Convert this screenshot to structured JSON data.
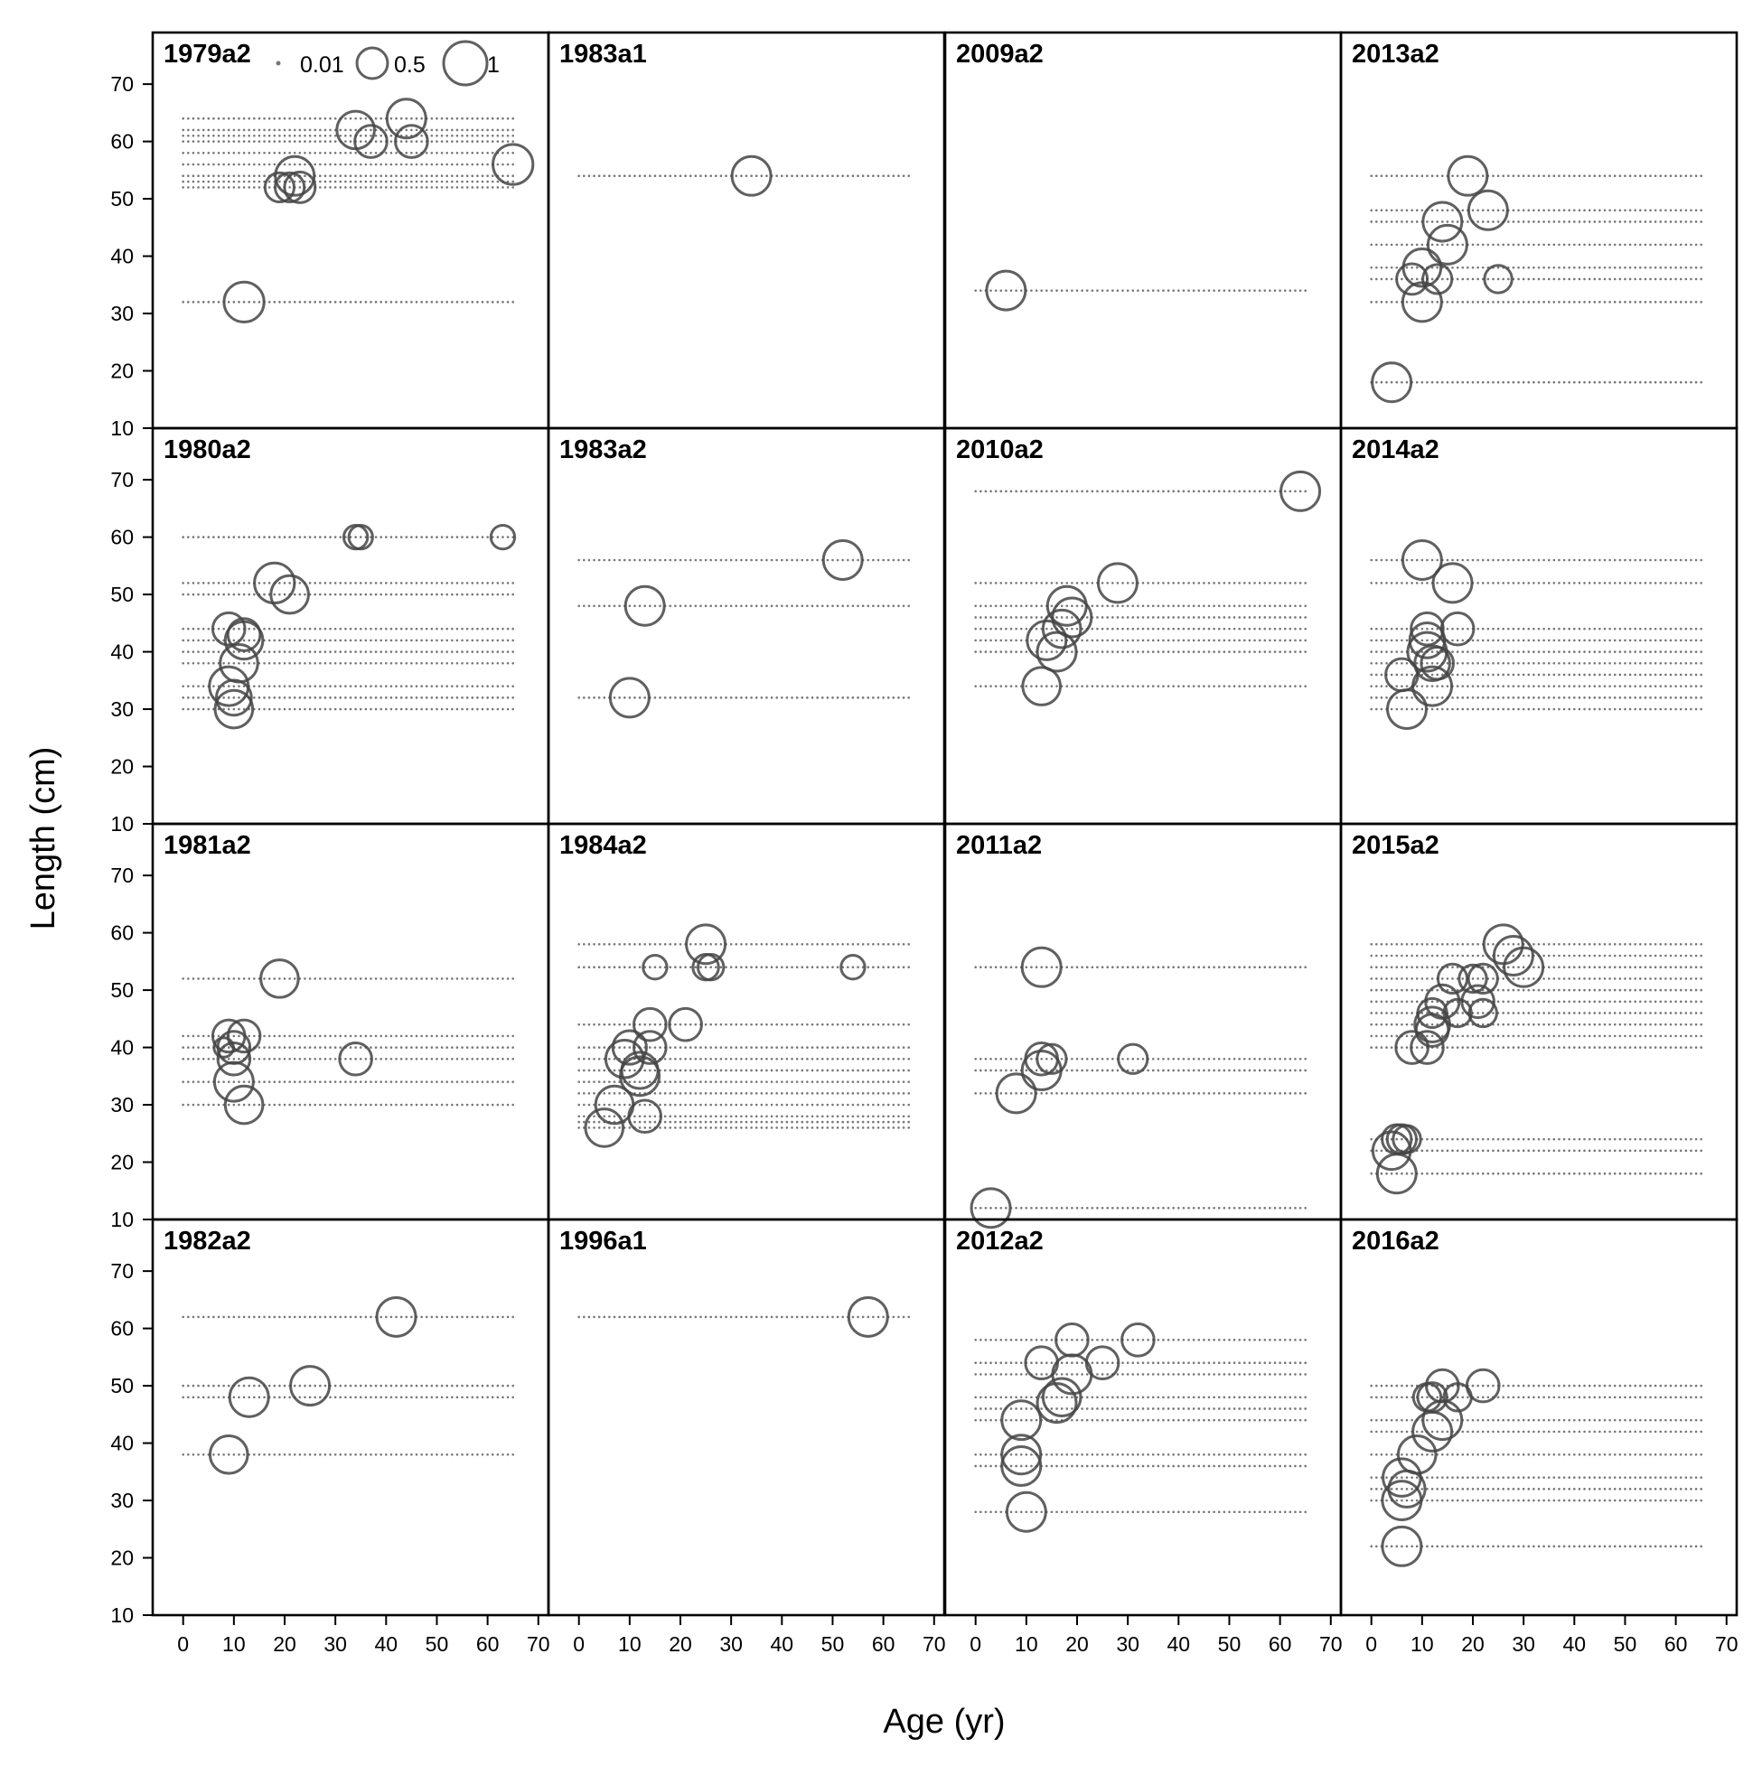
{
  "chart_data": {
    "type": "scatter",
    "xlabel": "Age (yr)",
    "ylabel": "Length (cm)",
    "xlim": [
      -6,
      72
    ],
    "ylim": [
      10,
      79
    ],
    "xticks": [
      "0",
      "10",
      "20",
      "30",
      "40",
      "50",
      "60",
      "70"
    ],
    "yticks": [
      "10",
      "20",
      "30",
      "40",
      "50",
      "60",
      "70"
    ],
    "grid": false,
    "legend": {
      "placement": "top-left of first panel",
      "entries": [
        {
          "label": "0.01",
          "size": 0.01
        },
        {
          "label": "0.5",
          "size": 0.5
        },
        {
          "label": "1",
          "size": 1
        }
      ]
    },
    "panels": [
      {
        "title": "1979a2",
        "col": 0,
        "row": 0,
        "x_max": 65,
        "rows": [
          32,
          52,
          53,
          54,
          56,
          58,
          60,
          61,
          62,
          64
        ],
        "points": [
          [
            12,
            32,
            0.85
          ],
          [
            19,
            52,
            0.45
          ],
          [
            21,
            52,
            0.45
          ],
          [
            23,
            52,
            0.5
          ],
          [
            22,
            54,
            0.8
          ],
          [
            34,
            62,
            0.75
          ],
          [
            37,
            60,
            0.55
          ],
          [
            44,
            64,
            0.8
          ],
          [
            45,
            60,
            0.55
          ],
          [
            65,
            56,
            0.85
          ]
        ]
      },
      {
        "title": "1980a2",
        "col": 0,
        "row": 1,
        "x_max": 65,
        "rows": [
          30,
          32,
          34,
          38,
          40,
          42,
          44,
          50,
          52,
          60
        ],
        "points": [
          [
            9,
            44,
            0.55
          ],
          [
            12,
            43,
            0.55
          ],
          [
            12,
            42,
            0.75
          ],
          [
            11,
            38,
            0.75
          ],
          [
            9,
            34,
            0.8
          ],
          [
            10,
            32,
            0.65
          ],
          [
            10,
            30,
            0.75
          ],
          [
            18,
            52,
            0.85
          ],
          [
            21,
            50,
            0.75
          ],
          [
            34,
            60,
            0.3
          ],
          [
            35,
            60,
            0.3
          ],
          [
            63,
            60,
            0.3
          ]
        ]
      },
      {
        "title": "1981a2",
        "col": 0,
        "row": 2,
        "x_max": 65,
        "rows": [
          30,
          34,
          38,
          40,
          42,
          52
        ],
        "points": [
          [
            8,
            40,
            0.2
          ],
          [
            9,
            42,
            0.55
          ],
          [
            12,
            42,
            0.55
          ],
          [
            10,
            40,
            0.55
          ],
          [
            10,
            38,
            0.55
          ],
          [
            10,
            34,
            0.8
          ],
          [
            12,
            30,
            0.75
          ],
          [
            19,
            52,
            0.75
          ],
          [
            34,
            38,
            0.55
          ]
        ]
      },
      {
        "title": "1982a2",
        "col": 0,
        "row": 3,
        "x_max": 65,
        "rows": [
          38,
          48,
          50,
          62
        ],
        "points": [
          [
            9,
            38,
            0.75
          ],
          [
            13,
            48,
            0.8
          ],
          [
            25,
            50,
            0.8
          ],
          [
            42,
            62,
            0.8
          ]
        ]
      },
      {
        "title": "1983a1",
        "col": 1,
        "row": 0,
        "x_max": 65,
        "rows": [
          54
        ],
        "points": [
          [
            34,
            54,
            0.8
          ]
        ]
      },
      {
        "title": "1983a2",
        "col": 1,
        "row": 1,
        "x_max": 65,
        "rows": [
          32,
          48,
          56
        ],
        "points": [
          [
            10,
            32,
            0.8
          ],
          [
            13,
            48,
            0.8
          ],
          [
            52,
            56,
            0.8
          ]
        ]
      },
      {
        "title": "1984a2",
        "col": 1,
        "row": 2,
        "x_max": 65,
        "rows": [
          26,
          27,
          28,
          30,
          32,
          34,
          36,
          38,
          40,
          44,
          54,
          58
        ],
        "points": [
          [
            5,
            26,
            0.75
          ],
          [
            7,
            30,
            0.75
          ],
          [
            9,
            38,
            0.75
          ],
          [
            10,
            40,
            0.6
          ],
          [
            12,
            35,
            0.8
          ],
          [
            12,
            36,
            0.7
          ],
          [
            13,
            28,
            0.55
          ],
          [
            14,
            40,
            0.55
          ],
          [
            14,
            44,
            0.55
          ],
          [
            15,
            54,
            0.3
          ],
          [
            21,
            44,
            0.55
          ],
          [
            25,
            58,
            0.8
          ],
          [
            25,
            54,
            0.35
          ],
          [
            26,
            54,
            0.35
          ],
          [
            54,
            54,
            0.3
          ]
        ]
      },
      {
        "title": "1996a1",
        "col": 1,
        "row": 3,
        "x_max": 65,
        "rows": [
          62
        ],
        "points": [
          [
            57,
            62,
            0.8
          ]
        ]
      },
      {
        "title": "2009a2",
        "col": 2,
        "row": 0,
        "x_max": 65,
        "rows": [
          34
        ],
        "points": [
          [
            6,
            34,
            0.8
          ]
        ]
      },
      {
        "title": "2010a2",
        "col": 2,
        "row": 1,
        "x_max": 65,
        "rows": [
          34,
          40,
          42,
          44,
          46,
          48,
          52,
          68
        ],
        "points": [
          [
            13,
            34,
            0.75
          ],
          [
            14,
            42,
            0.8
          ],
          [
            16,
            40,
            0.8
          ],
          [
            17,
            44,
            0.75
          ],
          [
            18,
            48,
            0.8
          ],
          [
            19,
            46,
            0.8
          ],
          [
            28,
            52,
            0.8
          ],
          [
            64,
            68,
            0.8
          ]
        ]
      },
      {
        "title": "2011a2",
        "col": 2,
        "row": 2,
        "x_max": 65,
        "rows": [
          12,
          32,
          36,
          38,
          54
        ],
        "points": [
          [
            3,
            12,
            0.8
          ],
          [
            8,
            32,
            0.8
          ],
          [
            13,
            38,
            0.55
          ],
          [
            13,
            36,
            0.8
          ],
          [
            13,
            54,
            0.8
          ],
          [
            15,
            38,
            0.45
          ],
          [
            31,
            38,
            0.45
          ]
        ]
      },
      {
        "title": "2012a2",
        "col": 2,
        "row": 3,
        "x_max": 65,
        "rows": [
          28,
          36,
          38,
          44,
          46,
          48,
          52,
          54,
          58
        ],
        "points": [
          [
            9,
            44,
            0.8
          ],
          [
            9,
            38,
            0.8
          ],
          [
            9,
            36,
            0.8
          ],
          [
            10,
            28,
            0.8
          ],
          [
            13,
            54,
            0.55
          ],
          [
            16,
            47,
            0.8
          ],
          [
            17,
            48,
            0.75
          ],
          [
            19,
            52,
            0.8
          ],
          [
            19,
            58,
            0.55
          ],
          [
            25,
            54,
            0.55
          ],
          [
            32,
            58,
            0.55
          ]
        ]
      },
      {
        "title": "2013a2",
        "col": 3,
        "row": 0,
        "x_max": 65,
        "rows": [
          18,
          32,
          36,
          38,
          42,
          46,
          48,
          54
        ],
        "points": [
          [
            4,
            18,
            0.8
          ],
          [
            8,
            36,
            0.5
          ],
          [
            10,
            38,
            0.75
          ],
          [
            10,
            32,
            0.8
          ],
          [
            13,
            36,
            0.45
          ],
          [
            14,
            46,
            0.8
          ],
          [
            15,
            42,
            0.8
          ],
          [
            19,
            54,
            0.8
          ],
          [
            23,
            48,
            0.8
          ],
          [
            25,
            36,
            0.4
          ]
        ]
      },
      {
        "title": "2014a2",
        "col": 3,
        "row": 1,
        "x_max": 65,
        "rows": [
          30,
          32,
          34,
          36,
          38,
          40,
          42,
          44,
          52,
          56
        ],
        "points": [
          [
            6,
            36,
            0.55
          ],
          [
            7,
            30,
            0.8
          ],
          [
            10,
            56,
            0.8
          ],
          [
            11,
            44,
            0.55
          ],
          [
            11,
            42,
            0.65
          ],
          [
            11,
            40,
            0.8
          ],
          [
            12,
            38,
            0.65
          ],
          [
            12,
            34,
            0.8
          ],
          [
            13,
            38,
            0.55
          ],
          [
            16,
            52,
            0.8
          ],
          [
            17,
            44,
            0.55
          ]
        ]
      },
      {
        "title": "2015a2",
        "col": 3,
        "row": 2,
        "x_max": 65,
        "rows": [
          18,
          22,
          24,
          40,
          42,
          44,
          46,
          48,
          50,
          52,
          54,
          56,
          58
        ],
        "points": [
          [
            4,
            22,
            0.75
          ],
          [
            5,
            24,
            0.45
          ],
          [
            5,
            18,
            0.8
          ],
          [
            6,
            24,
            0.45
          ],
          [
            7,
            24,
            0.4
          ],
          [
            8,
            40,
            0.55
          ],
          [
            11,
            40,
            0.55
          ],
          [
            12,
            44,
            0.65
          ],
          [
            12,
            43,
            0.55
          ],
          [
            12,
            46,
            0.45
          ],
          [
            14,
            48,
            0.6
          ],
          [
            16,
            52,
            0.45
          ],
          [
            17,
            46,
            0.4
          ],
          [
            20,
            52,
            0.4
          ],
          [
            21,
            48,
            0.55
          ],
          [
            22,
            52,
            0.45
          ],
          [
            22,
            46,
            0.4
          ],
          [
            26,
            58,
            0.8
          ],
          [
            28,
            56,
            0.8
          ],
          [
            30,
            54,
            0.8
          ]
        ]
      },
      {
        "title": "2016a2",
        "col": 3,
        "row": 3,
        "x_max": 65,
        "rows": [
          22,
          30,
          32,
          34,
          38,
          42,
          44,
          48,
          50
        ],
        "points": [
          [
            6,
            22,
            0.8
          ],
          [
            6,
            30,
            0.8
          ],
          [
            6,
            34,
            0.75
          ],
          [
            7,
            32,
            0.7
          ],
          [
            9,
            38,
            0.75
          ],
          [
            11,
            48,
            0.4
          ],
          [
            12,
            42,
            0.8
          ],
          [
            12,
            48,
            0.45
          ],
          [
            14,
            50,
            0.55
          ],
          [
            14,
            44,
            0.8
          ],
          [
            17,
            48,
            0.4
          ],
          [
            22,
            50,
            0.55
          ]
        ]
      }
    ]
  }
}
